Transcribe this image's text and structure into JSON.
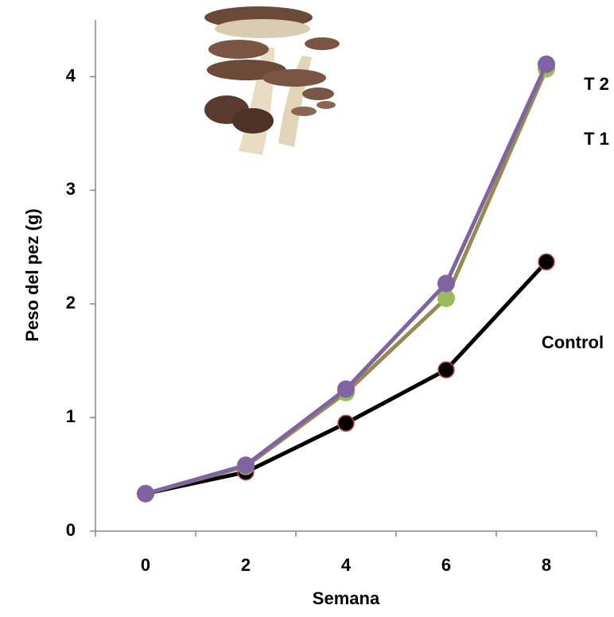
{
  "chart_data": {
    "type": "line",
    "x_label": "Semana",
    "y_label": "Peso del pez (g)",
    "categories": [
      "0",
      "2",
      "4",
      "6",
      "8"
    ],
    "ylim": [
      0,
      4.5
    ],
    "yticks": [
      0,
      1,
      2,
      3,
      4
    ],
    "series": [
      {
        "name": "Control",
        "color": "#000000",
        "marker_edge": "#c0504d",
        "values": [
          0.33,
          0.52,
          0.95,
          1.42,
          2.37
        ]
      },
      {
        "name": "T 1",
        "color": "#9bbb59",
        "line_color": "#948a54",
        "values": [
          0.33,
          0.57,
          1.22,
          2.05,
          4.07
        ]
      },
      {
        "name": "T 2",
        "color": "#8064a2",
        "values": [
          0.33,
          0.58,
          1.25,
          2.18,
          4.11
        ]
      }
    ]
  }
}
